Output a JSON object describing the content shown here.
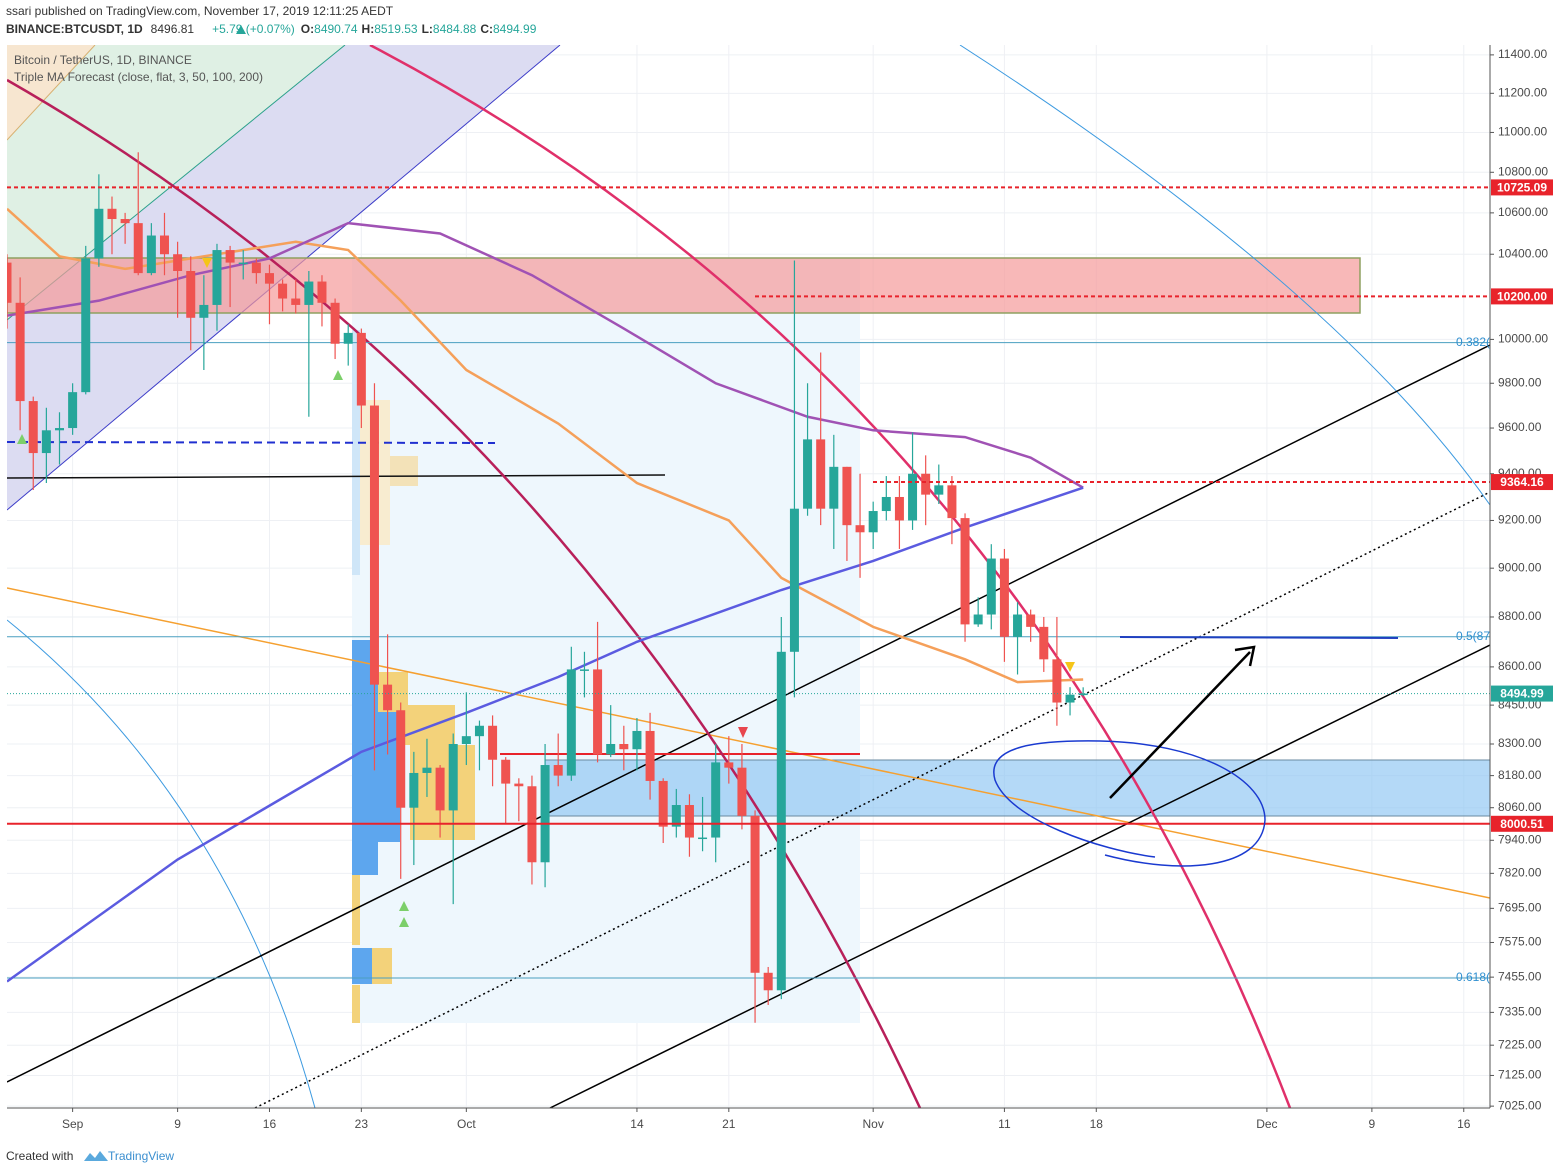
{
  "header": {
    "published": "ssari published on TradingView.com, November 17, 2019 12:11:25 AEDT",
    "symbol": "BINANCE:BTCUSDT, 1D",
    "last": "8496.81",
    "change": "+5.79 (+0.07%)",
    "ohlc": [
      {
        "key": "O:",
        "value": "8490.74"
      },
      {
        "key": "H:",
        "value": "8519.53"
      },
      {
        "key": "L:",
        "value": "8484.88"
      },
      {
        "key": "C:",
        "value": "8494.99"
      }
    ]
  },
  "legend": [
    "Bitcoin / TetherUS, 1D, BINANCE",
    "Triple MA Forecast (close, flat, 3, 50, 100, 200)"
  ],
  "footer": {
    "created": "Created with",
    "brand": "TradingView"
  },
  "chart_data": {
    "type": "candlestick",
    "log_scale": true,
    "grid": true,
    "up_color": "#26a69a",
    "down_color": "#ef5350",
    "xlim": [
      "2019-08-27",
      "2019-12-18"
    ],
    "xticks": [
      {
        "value": "2019-09-01",
        "label": "Sep"
      },
      {
        "value": "2019-09-09",
        "label": "9"
      },
      {
        "value": "2019-09-16",
        "label": "16"
      },
      {
        "value": "2019-09-23",
        "label": "23"
      },
      {
        "value": "2019-10-01",
        "label": "Oct"
      },
      {
        "value": "2019-10-14",
        "label": "14"
      },
      {
        "value": "2019-10-21",
        "label": "21"
      },
      {
        "value": "2019-11-01",
        "label": "Nov"
      },
      {
        "value": "2019-11-11",
        "label": "11"
      },
      {
        "value": "2019-11-18",
        "label": "18"
      },
      {
        "value": "2019-12-01",
        "label": "Dec"
      },
      {
        "value": "2019-12-09",
        "label": "9"
      },
      {
        "value": "2019-12-16",
        "label": "16"
      }
    ],
    "ylim": [
      7019,
      11452
    ],
    "yticks": [
      {
        "value": 11400,
        "label": "11400.00"
      },
      {
        "value": 11200,
        "label": "11200.00"
      },
      {
        "value": 11000,
        "label": "11000.00"
      },
      {
        "value": 10800,
        "label": "10800.00"
      },
      {
        "value": 10600,
        "label": "10600.00"
      },
      {
        "value": 10400,
        "label": "10400.00"
      },
      {
        "value": 10000,
        "label": "10000.00"
      },
      {
        "value": 9800,
        "label": "9800.00"
      },
      {
        "value": 9600,
        "label": "9600.00"
      },
      {
        "value": 9400,
        "label": "9400.00"
      },
      {
        "value": 9200,
        "label": "9200.00"
      },
      {
        "value": 9000,
        "label": "9000.00"
      },
      {
        "value": 8800,
        "label": "8800.00"
      },
      {
        "value": 8600,
        "label": "8600.00"
      },
      {
        "value": 8450,
        "label": "8450.00"
      },
      {
        "value": 8300,
        "label": "8300.00"
      },
      {
        "value": 8180,
        "label": "8180.00"
      },
      {
        "value": 8060,
        "label": "8060.00"
      },
      {
        "value": 7940,
        "label": "7940.00"
      },
      {
        "value": 7820,
        "label": "7820.00"
      },
      {
        "value": 7695,
        "label": "7695.00"
      },
      {
        "value": 7575,
        "label": "7575.00"
      },
      {
        "value": 7455,
        "label": "7455.00"
      },
      {
        "value": 7335,
        "label": "7335.00"
      },
      {
        "value": 7225,
        "label": "7225.00"
      },
      {
        "value": 7125,
        "label": "7125.00"
      },
      {
        "value": 7025,
        "label": "7025.00"
      }
    ],
    "x": [
      "2019-08-27",
      "2019-08-28",
      "2019-08-29",
      "2019-08-30",
      "2019-08-31",
      "2019-09-01",
      "2019-09-02",
      "2019-09-03",
      "2019-09-04",
      "2019-09-05",
      "2019-09-06",
      "2019-09-07",
      "2019-09-08",
      "2019-09-09",
      "2019-09-10",
      "2019-09-11",
      "2019-09-12",
      "2019-09-13",
      "2019-09-14",
      "2019-09-15",
      "2019-09-16",
      "2019-09-17",
      "2019-09-18",
      "2019-09-19",
      "2019-09-20",
      "2019-09-21",
      "2019-09-22",
      "2019-09-23",
      "2019-09-24",
      "2019-09-25",
      "2019-09-26",
      "2019-09-27",
      "2019-09-28",
      "2019-09-29",
      "2019-09-30",
      "2019-10-01",
      "2019-10-02",
      "2019-10-03",
      "2019-10-04",
      "2019-10-05",
      "2019-10-06",
      "2019-10-07",
      "2019-10-08",
      "2019-10-09",
      "2019-10-10",
      "2019-10-11",
      "2019-10-12",
      "2019-10-13",
      "2019-10-14",
      "2019-10-15",
      "2019-10-16",
      "2019-10-17",
      "2019-10-18",
      "2019-10-19",
      "2019-10-20",
      "2019-10-21",
      "2019-10-22",
      "2019-10-23",
      "2019-10-24",
      "2019-10-25",
      "2019-10-26",
      "2019-10-27",
      "2019-10-28",
      "2019-10-29",
      "2019-10-30",
      "2019-10-31",
      "2019-11-01",
      "2019-11-02",
      "2019-11-03",
      "2019-11-04",
      "2019-11-05",
      "2019-11-06",
      "2019-11-07",
      "2019-11-08",
      "2019-11-09",
      "2019-11-10",
      "2019-11-11",
      "2019-11-12",
      "2019-11-13",
      "2019-11-14",
      "2019-11-15",
      "2019-11-16",
      "2019-11-17"
    ],
    "open": [
      10360,
      10170,
      9720,
      9490,
      9590,
      9600,
      9760,
      10380,
      10620,
      10570,
      10550,
      10310,
      10490,
      10400,
      10320,
      10100,
      10160,
      10420,
      10360,
      10360,
      10310,
      10260,
      10190,
      10160,
      10270,
      10170,
      9980,
      10030,
      9700,
      8530,
      8430,
      8060,
      8190,
      8210,
      8050,
      8300,
      8330,
      8370,
      8240,
      8150,
      8140,
      7860,
      8220,
      8180,
      8590,
      8590,
      8260,
      8300,
      8280,
      8350,
      8160,
      7990,
      8070,
      7950,
      7950,
      8230,
      8210,
      8030,
      7470,
      7410,
      8660,
      9250,
      9550,
      9250,
      9430,
      9180,
      9150,
      9240,
      9300,
      9200,
      9400,
      9310,
      9350,
      9210,
      8770,
      8810,
      9040,
      8720,
      8810,
      8760,
      8630,
      8460,
      8490.74
    ],
    "high": [
      10400,
      10290,
      9740,
      9690,
      9670,
      9800,
      10440,
      10790,
      10680,
      10600,
      10900,
      10550,
      10600,
      10460,
      10390,
      10300,
      10450,
      10440,
      10420,
      10380,
      10350,
      10280,
      10280,
      10320,
      10300,
      10190,
      10070,
      10050,
      9800,
      8730,
      8460,
      8270,
      8320,
      8220,
      8340,
      8500,
      8390,
      8410,
      8250,
      8170,
      8180,
      8300,
      8340,
      8680,
      8660,
      8780,
      8450,
      8370,
      8400,
      8420,
      8170,
      8130,
      8110,
      8100,
      8300,
      8330,
      8300,
      8050,
      7490,
      8800,
      10370,
      9800,
      9940,
      9570,
      9430,
      9400,
      9280,
      9390,
      9390,
      9580,
      9480,
      9440,
      9390,
      9230,
      8880,
      9100,
      9080,
      8860,
      8830,
      8800,
      8800,
      8520,
      8519.53
    ],
    "low": [
      10050,
      9590,
      9330,
      9360,
      9440,
      9570,
      9750,
      10340,
      10400,
      10450,
      10300,
      10300,
      10300,
      10100,
      9950,
      9860,
      10040,
      10150,
      10280,
      10260,
      10070,
      10130,
      10120,
      9650,
      10060,
      9910,
      9880,
      9600,
      8200,
      8260,
      7800,
      7850,
      8100,
      7950,
      7710,
      8220,
      8200,
      8140,
      8000,
      8010,
      7780,
      7770,
      8140,
      8160,
      8480,
      8230,
      8250,
      8200,
      8200,
      8090,
      7930,
      7950,
      7880,
      7900,
      7860,
      8150,
      7980,
      7300,
      7360,
      7380,
      8480,
      9220,
      9180,
      9080,
      9030,
      8960,
      9080,
      9200,
      9080,
      9160,
      9180,
      9270,
      9100,
      8700,
      8760,
      8750,
      8620,
      8570,
      8700,
      8580,
      8370,
      8410,
      8484.88
    ],
    "close": [
      10170,
      9720,
      9490,
      9590,
      9600,
      9760,
      10380,
      10620,
      10570,
      10550,
      10310,
      10490,
      10400,
      10320,
      10100,
      10160,
      10420,
      10360,
      10360,
      10310,
      10260,
      10190,
      10160,
      10270,
      10170,
      9980,
      10030,
      9700,
      8530,
      8430,
      8060,
      8190,
      8210,
      8050,
      8300,
      8330,
      8370,
      8240,
      8150,
      8140,
      7860,
      8220,
      8180,
      8590,
      8590,
      8260,
      8300,
      8280,
      8350,
      8160,
      7990,
      8070,
      7950,
      7950,
      8230,
      8210,
      8030,
      7470,
      7410,
      8660,
      9250,
      9550,
      9250,
      9430,
      9180,
      9150,
      9240,
      9300,
      9200,
      9400,
      9310,
      9350,
      9210,
      8770,
      8810,
      9040,
      8720,
      8810,
      8760,
      8630,
      8460,
      8490.74,
      8494.99
    ],
    "moving_averages": [
      {
        "color": "#f5a05a",
        "x": [
          "2019-08-27",
          "2019-08-31",
          "2019-09-05",
          "2019-09-12",
          "2019-09-18",
          "2019-09-22",
          "2019-09-26",
          "2019-10-01",
          "2019-10-08",
          "2019-10-14",
          "2019-10-21",
          "2019-10-25",
          "2019-11-01",
          "2019-11-08",
          "2019-11-12",
          "2019-11-17"
        ],
        "values": [
          10620,
          10390,
          10330,
          10400,
          10460,
          10420,
          10180,
          9860,
          9620,
          9360,
          9200,
          8960,
          8760,
          8630,
          8540,
          8550
        ]
      },
      {
        "color": "#a052b4",
        "x": [
          "2019-08-27",
          "2019-09-03",
          "2019-09-10",
          "2019-09-16",
          "2019-09-22",
          "2019-09-29",
          "2019-10-06",
          "2019-10-13",
          "2019-10-20",
          "2019-10-27",
          "2019-11-01",
          "2019-11-08",
          "2019-11-13",
          "2019-11-17"
        ],
        "values": [
          10110,
          10180,
          10300,
          10380,
          10550,
          10500,
          10300,
          10050,
          9800,
          9650,
          9590,
          9560,
          9470,
          9340
        ]
      },
      {
        "color": "#5b5be0",
        "x": [
          "2019-08-27",
          "2019-09-09",
          "2019-09-23",
          "2019-10-01",
          "2019-10-08",
          "2019-10-14",
          "2019-10-25",
          "2019-11-01",
          "2019-11-08",
          "2019-11-17"
        ],
        "values": [
          7440,
          7870,
          8270,
          8420,
          8560,
          8700,
          8910,
          9030,
          9170,
          9340
        ]
      }
    ],
    "price_lines": [
      {
        "value": 10725.09,
        "label": "10725.09",
        "color": "#e8232b",
        "style": "dashed"
      },
      {
        "value": 10200,
        "label": "10200.00",
        "color": "#e8232b",
        "style": "dashed"
      },
      {
        "value": 9364.16,
        "label": "9364.16",
        "color": "#e8232b",
        "style": "dashed"
      },
      {
        "value": 8000.51,
        "label": "8000.51",
        "color": "#e8232b",
        "style": "solid"
      },
      {
        "value": 8494.99,
        "label": "8494.99",
        "color": "#26a69a",
        "style": "dotted"
      }
    ],
    "fib_lines": [
      {
        "value": 9985,
        "label": "0.382("
      },
      {
        "value": 8720,
        "label": "0.5(87"
      },
      {
        "value": 7452,
        "label": "0.618("
      }
    ]
  }
}
